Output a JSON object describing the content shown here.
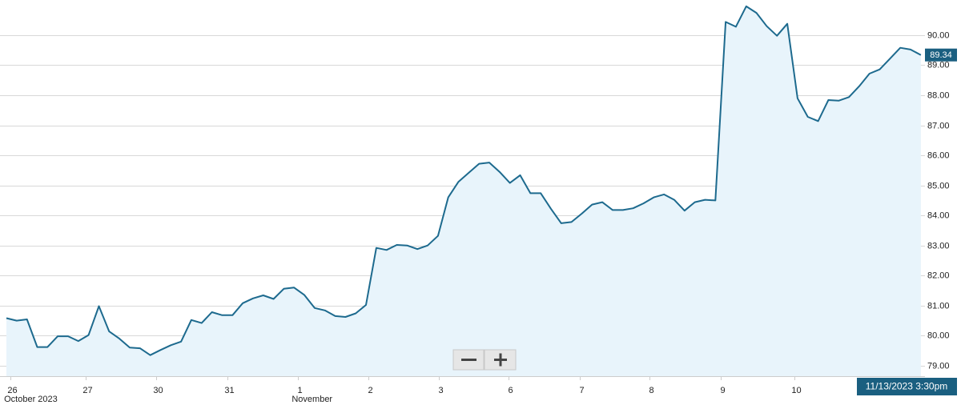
{
  "chart_data": {
    "type": "area",
    "x": [
      0,
      1,
      2,
      3,
      4,
      5,
      6,
      7,
      8,
      9,
      10,
      11,
      12,
      13,
      14,
      15,
      16,
      17,
      18,
      19,
      20,
      21,
      22,
      23,
      24,
      25,
      26,
      27,
      28,
      29,
      30,
      31,
      32,
      33,
      34,
      35,
      36,
      37,
      38,
      39,
      40,
      41,
      42,
      43,
      44,
      45,
      46,
      47,
      48,
      49,
      50,
      51,
      52,
      53,
      54,
      55,
      56,
      57,
      58,
      59,
      60,
      61,
      62,
      63,
      64,
      65,
      66,
      67,
      68,
      69,
      70,
      71,
      72,
      73,
      74,
      75,
      76,
      77,
      78,
      79,
      80,
      81,
      82,
      83,
      84,
      85,
      86,
      87,
      88,
      89
    ],
    "series": [
      {
        "color": "#1d6a8e",
        "fill": "#e8f4fb",
        "values": [
          80.58,
          80.5,
          80.54,
          79.62,
          79.62,
          79.98,
          79.98,
          79.82,
          80.02,
          80.98,
          80.14,
          79.9,
          79.6,
          79.58,
          79.35,
          79.52,
          79.68,
          79.8,
          80.52,
          80.42,
          80.78,
          80.68,
          80.68,
          81.08,
          81.24,
          81.34,
          81.22,
          81.56,
          81.6,
          81.35,
          80.92,
          80.84,
          80.65,
          80.62,
          80.74,
          81.02,
          82.92,
          82.85,
          83.02,
          83.0,
          82.88,
          83.0,
          83.32,
          84.6,
          85.12,
          85.42,
          85.72,
          85.76,
          85.45,
          85.08,
          85.34,
          84.74,
          84.74,
          84.22,
          83.74,
          83.78,
          84.06,
          84.36,
          84.44,
          84.18,
          84.18,
          84.24,
          84.4,
          84.6,
          84.7,
          84.52,
          84.16,
          84.44,
          84.52,
          84.5,
          90.44,
          90.28,
          90.96,
          90.74,
          90.3,
          89.98,
          90.38,
          87.9,
          87.28,
          87.14,
          87.84,
          87.82,
          87.94,
          88.3,
          88.72,
          88.86,
          89.22,
          89.58,
          89.52,
          89.34
        ]
      }
    ],
    "xlim": [
      0,
      89.4
    ],
    "ylim": [
      78.65,
      91.17
    ],
    "yticks": [
      {
        "value": 79,
        "label": "79.00"
      },
      {
        "value": 80,
        "label": "80.00"
      },
      {
        "value": 81,
        "label": "81.00"
      },
      {
        "value": 82,
        "label": "82.00"
      },
      {
        "value": 83,
        "label": "83.00"
      },
      {
        "value": 84,
        "label": "84.00"
      },
      {
        "value": 85,
        "label": "85.00"
      },
      {
        "value": 86,
        "label": "86.00"
      },
      {
        "value": 87,
        "label": "87.00"
      },
      {
        "value": 88,
        "label": "88.00"
      },
      {
        "value": 89,
        "label": "89.00"
      },
      {
        "value": 90,
        "label": "90.00"
      }
    ],
    "xticks": [
      {
        "value": 0.4,
        "label": "26"
      },
      {
        "value": 7.7,
        "label": "27"
      },
      {
        "value": 14.6,
        "label": "30"
      },
      {
        "value": 21.5,
        "label": "31"
      },
      {
        "value": 28.4,
        "label": "1"
      },
      {
        "value": 35.2,
        "label": "2"
      },
      {
        "value": 42.1,
        "label": "3"
      },
      {
        "value": 48.9,
        "label": "6"
      },
      {
        "value": 55.8,
        "label": "7"
      },
      {
        "value": 62.6,
        "label": "8"
      },
      {
        "value": 69.5,
        "label": "9"
      },
      {
        "value": 76.7,
        "label": "10"
      }
    ],
    "x_sublabels": [
      {
        "value": 0.4,
        "label": "October 2023"
      },
      {
        "value": 28.4,
        "label": "November"
      }
    ],
    "last_value": 89.34,
    "last_date": "11/13/2023 3:30pm",
    "grid": true
  }
}
